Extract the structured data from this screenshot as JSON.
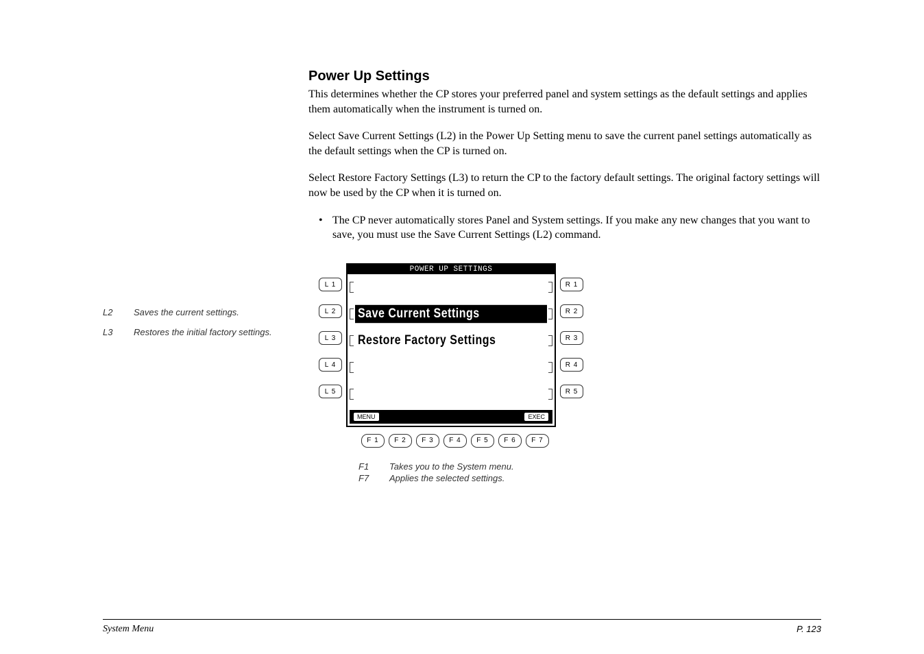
{
  "title": "Power Up Settings",
  "paragraphs": {
    "p1": "This determines whether the CP stores your preferred panel and system settings as the default settings and applies them automatically when the instrument is turned on.",
    "p2": "Select Save Current Settings (L2) in the Power Up Setting menu to save the current panel settings automatically as the default settings when the CP is turned on.",
    "p3": "Select Restore Factory Settings (L3) to return the CP to the factory default settings.  The original factory settings will now be used by the CP when it is turned on.",
    "bullet1": "The CP never automatically stores Panel and System settings.  If you make any new changes that you want to save, you must use the Save Current Settings (L2) command."
  },
  "sidebar": {
    "L2": {
      "key": "L2",
      "text": "Saves the current settings."
    },
    "L3": {
      "key": "L3",
      "text": "Restores the initial factory settings."
    }
  },
  "lcd": {
    "header": "POWER UP SETTINGS",
    "rows": {
      "r2": {
        "label": "Save Current Settings",
        "selected": true
      },
      "r3": {
        "label": "Restore Factory Settings",
        "selected": false
      }
    },
    "softkeys": {
      "left": "MENU",
      "right": "EXEC"
    },
    "L": [
      "L 1",
      "L 2",
      "L 3",
      "L 4",
      "L 5"
    ],
    "R": [
      "R 1",
      "R 2",
      "R 3",
      "R 4",
      "R 5"
    ],
    "F": [
      "F 1",
      "F 2",
      "F 3",
      "F 4",
      "F 5",
      "F 6",
      "F 7"
    ]
  },
  "fnotes": {
    "F1": {
      "key": "F1",
      "text": "Takes you to the System menu."
    },
    "F7": {
      "key": "F7",
      "text": "Applies the selected settings."
    }
  },
  "footer": {
    "left": "System Menu",
    "right": "P. 123"
  },
  "style": {
    "title_fontsize": 20,
    "body_fontsize": 16,
    "note_fontsize": 13,
    "lcd_bg": "#ffffff",
    "lcd_fg": "#000000",
    "page_bg": "#ffffff",
    "text_color": "#000000"
  }
}
